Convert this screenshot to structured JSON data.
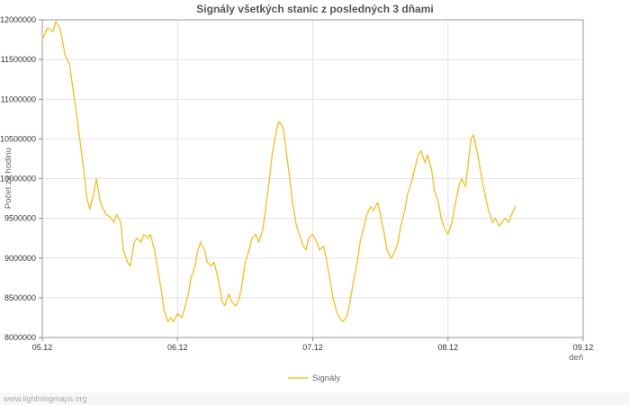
{
  "watermark": "www.lightningmaps.org",
  "legend": {
    "label": "Signály"
  },
  "chart_data": {
    "type": "line",
    "title": "Signály všetkých staníc z posledných 3 dňami",
    "xlabel": "deň",
    "ylabel": "Počet za hodinu",
    "grid": true,
    "legend_position": "bottom-center",
    "xlim": [
      5,
      9
    ],
    "ylim": [
      8000000,
      12000000
    ],
    "x_ticks": [
      {
        "value": 5,
        "label": "05.12"
      },
      {
        "value": 6,
        "label": "06.12"
      },
      {
        "value": 7,
        "label": "07.12"
      },
      {
        "value": 8,
        "label": "08.12"
      },
      {
        "value": 9,
        "label": "09.12"
      }
    ],
    "y_ticks": [
      8000000,
      8500000,
      9000000,
      9500000,
      10000000,
      10500000,
      11000000,
      11500000,
      12000000
    ],
    "series": [
      {
        "name": "Signály",
        "color": "#f2c232",
        "x": [
          5.0,
          5.04,
          5.08,
          5.1,
          5.13,
          5.17,
          5.2,
          5.25,
          5.3,
          5.33,
          5.35,
          5.38,
          5.4,
          5.43,
          5.47,
          5.5,
          5.53,
          5.55,
          5.58,
          5.6,
          5.63,
          5.65,
          5.68,
          5.7,
          5.73,
          5.75,
          5.78,
          5.8,
          5.83,
          5.85,
          5.88,
          5.9,
          5.93,
          5.95,
          5.97,
          6.0,
          6.03,
          6.05,
          6.08,
          6.1,
          6.13,
          6.15,
          6.17,
          6.2,
          6.22,
          6.25,
          6.27,
          6.3,
          6.33,
          6.35,
          6.38,
          6.4,
          6.43,
          6.45,
          6.47,
          6.5,
          6.53,
          6.55,
          6.58,
          6.6,
          6.63,
          6.65,
          6.68,
          6.7,
          6.73,
          6.75,
          6.78,
          6.8,
          6.83,
          6.85,
          6.88,
          6.9,
          6.93,
          6.95,
          6.97,
          7.0,
          7.03,
          7.05,
          7.08,
          7.1,
          7.13,
          7.15,
          7.18,
          7.2,
          7.22,
          7.25,
          7.27,
          7.3,
          7.33,
          7.35,
          7.38,
          7.4,
          7.43,
          7.45,
          7.48,
          7.5,
          7.53,
          7.55,
          7.58,
          7.6,
          7.63,
          7.65,
          7.68,
          7.7,
          7.73,
          7.75,
          7.78,
          7.8,
          7.83,
          7.85,
          7.88,
          7.9,
          7.93,
          7.95,
          7.98,
          8.0,
          8.03,
          8.05,
          8.08,
          8.1,
          8.13,
          8.15,
          8.17,
          8.19,
          8.22,
          8.25,
          8.28,
          8.3,
          8.33,
          8.35,
          8.38,
          8.4,
          8.42,
          8.45,
          8.47,
          8.5
        ],
        "y": [
          11750000,
          11900000,
          11850000,
          11980000,
          11900000,
          11550000,
          11450000,
          10850000,
          10200000,
          9750000,
          9620000,
          9800000,
          10000000,
          9700000,
          9550000,
          9520000,
          9450000,
          9550000,
          9450000,
          9100000,
          8950000,
          8900000,
          9200000,
          9250000,
          9200000,
          9300000,
          9250000,
          9300000,
          9100000,
          8900000,
          8600000,
          8350000,
          8200000,
          8250000,
          8200000,
          8300000,
          8250000,
          8350000,
          8550000,
          8750000,
          8900000,
          9100000,
          9200000,
          9100000,
          8950000,
          8900000,
          8950000,
          8750000,
          8450000,
          8400000,
          8550000,
          8450000,
          8400000,
          8450000,
          8600000,
          8950000,
          9100000,
          9250000,
          9300000,
          9200000,
          9350000,
          9600000,
          10000000,
          10300000,
          10600000,
          10720000,
          10650000,
          10400000,
          10000000,
          9700000,
          9400000,
          9300000,
          9150000,
          9100000,
          9250000,
          9300000,
          9200000,
          9100000,
          9150000,
          9000000,
          8700000,
          8500000,
          8300000,
          8250000,
          8200000,
          8250000,
          8400000,
          8700000,
          8950000,
          9200000,
          9400000,
          9550000,
          9650000,
          9600000,
          9700000,
          9550000,
          9300000,
          9100000,
          9000000,
          9050000,
          9200000,
          9400000,
          9600000,
          9800000,
          9950000,
          10100000,
          10300000,
          10350000,
          10200000,
          10300000,
          10100000,
          9850000,
          9700000,
          9500000,
          9350000,
          9300000,
          9450000,
          9650000,
          9900000,
          10000000,
          9900000,
          10200000,
          10500000,
          10550000,
          10300000,
          10000000,
          9750000,
          9600000,
          9450000,
          9500000,
          9400000,
          9450000,
          9500000,
          9450000,
          9550000,
          9650000
        ]
      }
    ]
  }
}
